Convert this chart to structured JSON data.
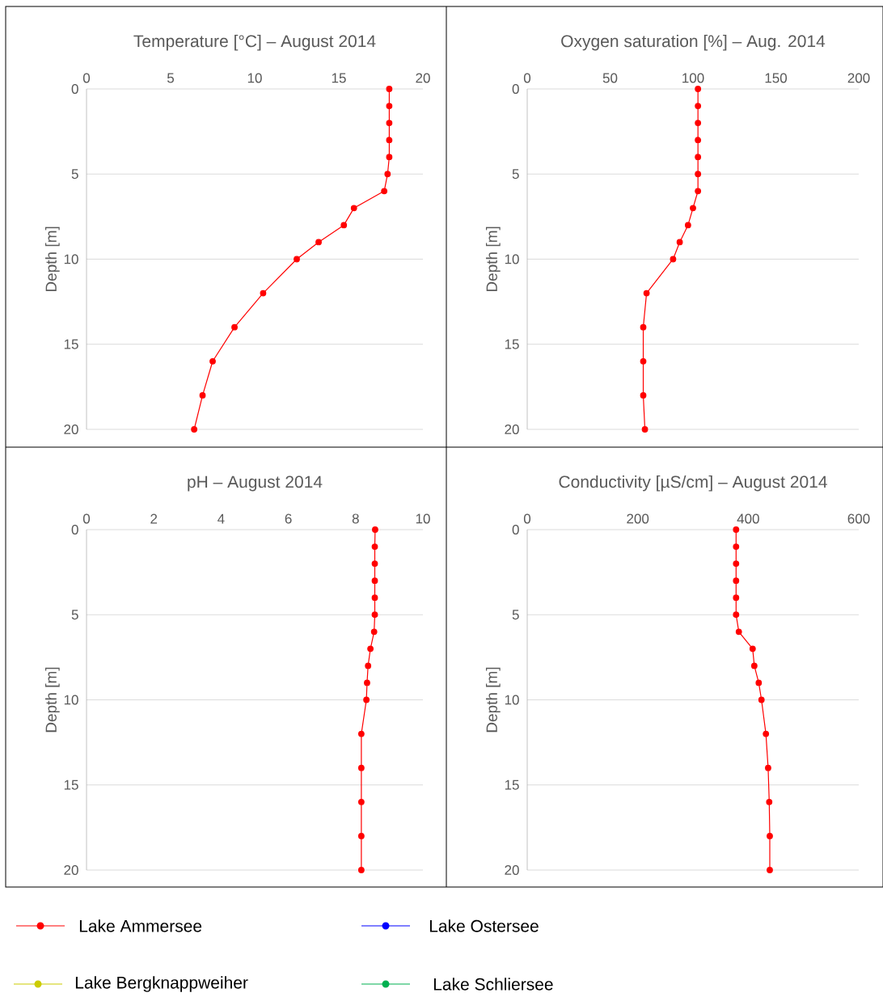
{
  "chart_data": [
    {
      "type": "line",
      "title": "Temperature [°C] – August 2014",
      "ylabel": "Depth [m]",
      "xlim": [
        0,
        20
      ],
      "xticks": [
        0,
        5,
        10,
        15,
        20
      ],
      "ylim": [
        20,
        0
      ],
      "yticks": [
        0,
        5,
        10,
        15,
        20
      ],
      "grid": "y",
      "marker": "circle",
      "legend": "bottom",
      "series": [
        {
          "name": "Lake Ammersee",
          "color": "#ff0000",
          "x": [
            18.0,
            18.0,
            18.0,
            18.0,
            18.0,
            17.9,
            17.7,
            15.9,
            15.3,
            13.8,
            12.5,
            10.5,
            8.8,
            7.5,
            6.9,
            6.4
          ],
          "values": [
            0,
            1,
            2,
            3,
            4,
            5,
            6,
            7,
            8,
            9,
            10,
            12,
            14,
            16,
            18,
            20
          ]
        },
        {
          "name": "Lake Ostersee",
          "color": "#0000ff",
          "x": [
            null
          ],
          "values": [
            null
          ]
        },
        {
          "name": "Lake Bergknappweiher",
          "color": "#cccc00",
          "x": [
            null
          ],
          "values": [
            null
          ]
        },
        {
          "name": "Lake Schliersee",
          "color": "#00b050",
          "x": [
            null
          ],
          "values": [
            null
          ]
        }
      ]
    },
    {
      "type": "line",
      "title": "Oxygen saturation [%] – Aug. 2014",
      "ylabel": "Depth [m]",
      "xlim": [
        0,
        200
      ],
      "xticks": [
        0,
        50,
        100,
        150,
        200
      ],
      "ylim": [
        20,
        0
      ],
      "yticks": [
        0,
        5,
        10,
        15,
        20
      ],
      "grid": "y",
      "marker": "circle",
      "series": [
        {
          "color": "#ff0000",
          "x": [
            103,
            103,
            103,
            103,
            103,
            103,
            103,
            100,
            97,
            92,
            88,
            72,
            70,
            70,
            70,
            71
          ],
          "values": [
            0,
            1,
            2,
            3,
            4,
            5,
            6,
            7,
            8,
            9,
            10,
            12,
            14,
            16,
            18,
            20
          ]
        }
      ]
    },
    {
      "type": "line",
      "title": "pH – August 2014",
      "ylabel": "Depth [m]",
      "xlim": [
        0,
        10
      ],
      "xticks": [
        0,
        2,
        4,
        6,
        8,
        10
      ],
      "ylim": [
        20,
        0
      ],
      "yticks": [
        0,
        5,
        10,
        15,
        20
      ],
      "grid": "y",
      "marker": "circle",
      "series": [
        {
          "color": "#ff0000",
          "x": [
            8.58,
            8.57,
            8.57,
            8.57,
            8.57,
            8.57,
            8.55,
            8.44,
            8.37,
            8.34,
            8.32,
            8.17,
            8.17,
            8.17,
            8.17,
            8.17
          ],
          "values": [
            0,
            1,
            2,
            3,
            4,
            5,
            6,
            7,
            8,
            9,
            10,
            12,
            14,
            16,
            18,
            20
          ]
        }
      ]
    },
    {
      "type": "line",
      "title": "Conductivity [µS/cm] – August 2014",
      "ylabel": "Depth [m]",
      "xlim": [
        0,
        600
      ],
      "xticks": [
        0,
        200,
        400,
        600
      ],
      "ylim": [
        20,
        0
      ],
      "yticks": [
        0,
        5,
        10,
        15,
        20
      ],
      "grid": "y",
      "marker": "circle",
      "series": [
        {
          "color": "#ff0000",
          "x": [
            378,
            378,
            378,
            378,
            378,
            378,
            383,
            408,
            411,
            419,
            424,
            432,
            436,
            438,
            439,
            439
          ],
          "values": [
            0,
            1,
            2,
            3,
            4,
            5,
            6,
            7,
            8,
            9,
            10,
            12,
            14,
            16,
            18,
            20
          ]
        }
      ]
    }
  ]
}
